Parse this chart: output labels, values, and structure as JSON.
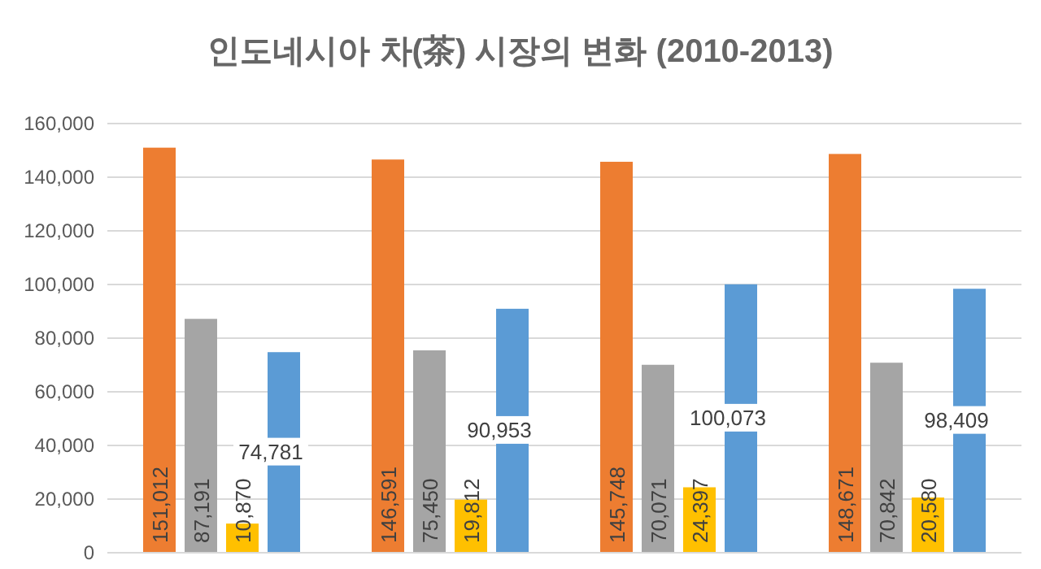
{
  "chart_data": {
    "type": "bar",
    "title": "인도네시아 차(茶) 시장의 변화 (2010-2013)",
    "categories": [
      null,
      null,
      null,
      null
    ],
    "series": [
      {
        "color": "#ed7d31",
        "values": [
          151012,
          146591,
          145748,
          148671
        ],
        "value_labels": [
          "151,012",
          "146,591",
          "145,748",
          "148,671"
        ]
      },
      {
        "color": "#a5a5a5",
        "values": [
          87191,
          75450,
          70071,
          70842
        ],
        "value_labels": [
          "87,191",
          "75,450",
          "70,071",
          "70,842"
        ]
      },
      {
        "color": "#ffc000",
        "values": [
          10870,
          19812,
          24397,
          20580
        ],
        "value_labels": [
          "10,870",
          "19,812",
          "24,397",
          "20,580"
        ]
      },
      {
        "color": "#5b9bd5",
        "values": [
          74781,
          90953,
          100073,
          98409
        ],
        "value_labels": [
          "74,781",
          "90,953",
          "100,073",
          "98,409"
        ]
      }
    ],
    "ylim": [
      0,
      160000
    ],
    "yticks": [
      {
        "value": 0,
        "label": "0"
      },
      {
        "value": 20000,
        "label": "20,000"
      },
      {
        "value": 40000,
        "label": "40,000"
      },
      {
        "value": 60000,
        "label": "60,000"
      },
      {
        "value": 80000,
        "label": "80,000"
      },
      {
        "value": 100000,
        "label": "100,000"
      },
      {
        "value": 120000,
        "label": "120,000"
      },
      {
        "value": 140000,
        "label": "140,000"
      },
      {
        "value": 160000,
        "label": "160,000"
      }
    ],
    "grid": "y"
  }
}
